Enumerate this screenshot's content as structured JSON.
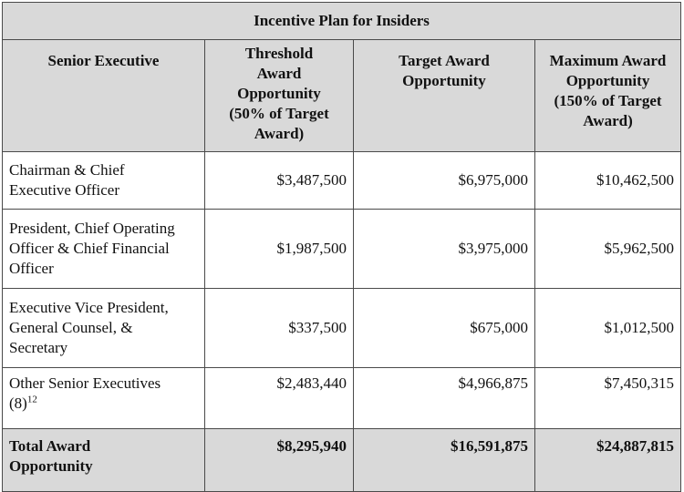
{
  "table": {
    "title": "Incentive Plan for Insiders",
    "headers": {
      "executive": "Senior Executive",
      "threshold": [
        "Threshold",
        "Award",
        "Opportunity",
        "(50% of Target",
        "Award)"
      ],
      "target": [
        "Target Award",
        "Opportunity"
      ],
      "maximum": [
        "Maximum Award",
        "Opportunity",
        "(150% of Target",
        "Award)"
      ]
    },
    "rows": [
      {
        "name": [
          "Chairman & Chief",
          "Executive Officer"
        ],
        "threshold": "$3,487,500",
        "target": "$6,975,000",
        "maximum": "$10,462,500"
      },
      {
        "name": [
          "President, Chief Operating",
          "Officer & Chief Financial",
          "Officer"
        ],
        "threshold": "$1,987,500",
        "target": "$3,975,000",
        "maximum": "$5,962,500"
      },
      {
        "name": [
          "Executive Vice President,",
          "General Counsel, &",
          "Secretary"
        ],
        "threshold": "$337,500",
        "target": "$675,000",
        "maximum": "$1,012,500"
      },
      {
        "name": [
          "Other Senior Executives",
          "(8)"
        ],
        "footnote": "12",
        "threshold": "$2,483,440",
        "target": "$4,966,875",
        "maximum": "$7,450,315"
      }
    ],
    "total": {
      "name": [
        "Total Award",
        "Opportunity"
      ],
      "threshold": "$8,295,940",
      "target": "$16,591,875",
      "maximum": "$24,887,815"
    },
    "header_background": "#d9d9d9",
    "border_color": "#4a4a4a"
  }
}
